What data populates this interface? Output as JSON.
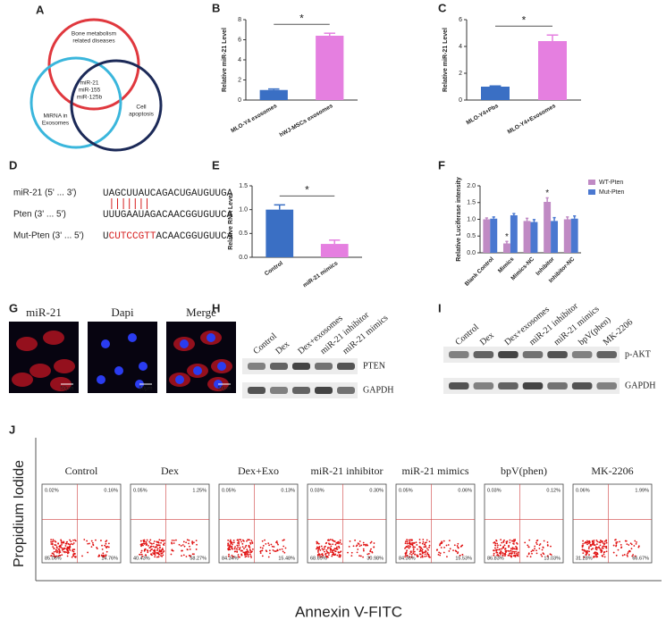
{
  "panel_labels": [
    "A",
    "B",
    "C",
    "D",
    "E",
    "F",
    "G",
    "H",
    "I",
    "J"
  ],
  "venn": {
    "sets": [
      {
        "lines": [
          "Bone metabolism",
          "related diseases"
        ],
        "color": "#e0383e"
      },
      {
        "lines": [
          "MiRNA in",
          "Exosomes"
        ],
        "color": "#3ab6dc"
      },
      {
        "lines": [
          "Cell",
          "apoptosis"
        ],
        "color": "#1c2a58"
      }
    ],
    "center": [
      "miR-21",
      "miR-155",
      "miR-125b"
    ]
  },
  "chart_data": [
    {
      "type": "bar",
      "ylabel": "Relative miR-21 Level",
      "categories": [
        "MLO-Y4 exosomes",
        "hWJ-MSCs exosomes"
      ],
      "values": [
        1.0,
        6.4
      ],
      "errors": [
        0.1,
        0.25
      ],
      "colors": [
        "#3a6fc4",
        "#e57fe0"
      ],
      "ylim": [
        0,
        8
      ],
      "yticks": [
        0,
        2,
        4,
        6,
        8
      ],
      "annotations": [
        {
          "text": "*"
        }
      ]
    },
    {
      "type": "bar",
      "ylabel": "Relative miR-21 Level",
      "categories": [
        "MLO-Y4+Pbs",
        "MLO-Y4+Exosomes"
      ],
      "values": [
        1.0,
        4.4
      ],
      "errors": [
        0.05,
        0.45
      ],
      "colors": [
        "#3a6fc4",
        "#e57fe0"
      ],
      "ylim": [
        0,
        6
      ],
      "yticks": [
        0,
        2,
        4,
        6
      ],
      "annotations": [
        {
          "text": "*"
        }
      ]
    },
    {
      "type": "bar",
      "ylabel": "Relative RNA Level",
      "categories": [
        "Control",
        "miR-21 mimics"
      ],
      "values": [
        1.0,
        0.28
      ],
      "errors": [
        0.1,
        0.08
      ],
      "colors": [
        "#3a6fc4",
        "#e57fe0"
      ],
      "ylim": [
        0,
        1.5
      ],
      "yticks": [
        {
          "value": 0,
          "label": "0.0"
        },
        0.5,
        {
          "value": 1,
          "label": "1.0"
        },
        1.5
      ],
      "annotations": [
        {
          "text": "*"
        }
      ]
    },
    {
      "type": "bar",
      "ylabel": "Relative Luciferase intensity",
      "categories": [
        "Blank Control",
        "Mimics",
        "Mimics-NC",
        "Inhibitor",
        "Inhibitor-NC"
      ],
      "series": [
        {
          "name": "WT-Pten",
          "color": "#c08ac4",
          "values": [
            1.0,
            0.28,
            0.95,
            1.52,
            1.0
          ],
          "errors": [
            0.04,
            0.06,
            0.08,
            0.12,
            0.07
          ]
        },
        {
          "name": "Mut-Pten",
          "color": "#4a78d0",
          "values": [
            1.02,
            1.12,
            0.92,
            0.95,
            1.02
          ],
          "errors": [
            0.05,
            0.05,
            0.07,
            0.1,
            0.08
          ]
        }
      ],
      "ylim": [
        0,
        2
      ],
      "yticks": [
        {
          "value": 0,
          "label": "0.0"
        },
        0.5,
        {
          "value": 1,
          "label": "1.0"
        },
        1.5,
        {
          "value": 2,
          "label": "2.0"
        }
      ],
      "legend": "top-right",
      "annotations": [
        {
          "text": "*",
          "x": "Mimics"
        },
        {
          "text": "*",
          "x": "Inhibitor"
        }
      ]
    }
  ],
  "sequences": [
    {
      "label": "miR-21 (5' ... 3')",
      "parts": [
        {
          "text": "UAGCUUAUCAGACUGAUGUUGA",
          "color": "#222"
        }
      ]
    },
    {
      "label": "Pten (3' ... 5')",
      "parts": [
        {
          "text": "UUUGAAUAGACAACGGUGUUCA",
          "color": "#222"
        }
      ]
    },
    {
      "label": "Mut-Pten (3' ... 5')",
      "parts": [
        {
          "text": "U",
          "color": "#222"
        },
        {
          "text": "CUTCCGTT",
          "color": "#d62020"
        },
        {
          "text": "ACAACGGUGUUCA",
          "color": "#222"
        }
      ]
    }
  ],
  "fluorescence": {
    "channels": [
      "miR-21",
      "Dapi",
      "Merge"
    ],
    "scale_bar": "50μm"
  },
  "blot_h": {
    "lanes": [
      "Control",
      "Dex",
      "Dex+exosomes",
      "miR-21 inhibitor",
      "miR-21 mimics"
    ],
    "bands": [
      "PTEN",
      "GAPDH"
    ]
  },
  "blot_i": {
    "lanes": [
      "Control",
      "Dex",
      "Dex+exosomes",
      "miR-21 inhibitor",
      "miR-21 mimics",
      "bpV(phen)",
      "MK-2206"
    ],
    "bands": [
      "p-AKT",
      "GAPDH"
    ]
  },
  "flow": {
    "y_label": "Propidium Iodide",
    "x_label": "Annexin V-FITC",
    "plots": [
      {
        "title": "Control",
        "quadrants": [
          "0.02%",
          "0.16%",
          "85.06%",
          "14.76%"
        ]
      },
      {
        "title": "Dex",
        "quadrants": [
          "0.05%",
          "1.25%",
          "40.43%",
          "58.27%"
        ]
      },
      {
        "title": "Dex+Exo",
        "quadrants": [
          "0.05%",
          "0.13%",
          "84.34%",
          "15.48%"
        ]
      },
      {
        "title": "miR-21 inhibitor",
        "quadrants": [
          "0.03%",
          "0.30%",
          "68.69%",
          "30.98%"
        ]
      },
      {
        "title": "miR-21 mimics",
        "quadrants": [
          "0.05%",
          "0.06%",
          "84.36%",
          "15.53%"
        ]
      },
      {
        "title": "bpV(phen)",
        "quadrants": [
          "0.03%",
          "0.12%",
          "86.83%",
          "13.03%"
        ]
      },
      {
        "title": "MK-2206",
        "quadrants": [
          "0.06%",
          "1.99%",
          "31.28%",
          "66.67%"
        ]
      }
    ]
  }
}
